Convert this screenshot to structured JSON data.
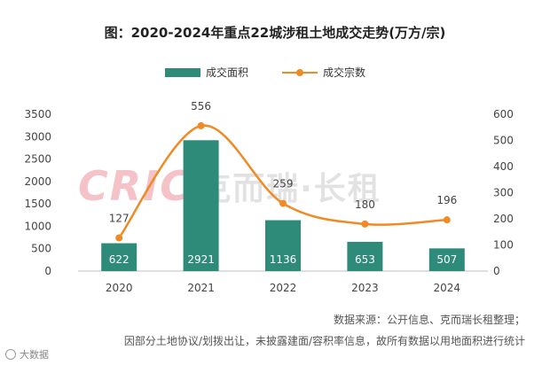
{
  "chart_data": {
    "type": "bar+line",
    "title": "图：2020-2024年重点22城涉租土地成交走势(万方/宗)",
    "categories": [
      "2020",
      "2021",
      "2022",
      "2023",
      "2024"
    ],
    "series": [
      {
        "name": "成交面积",
        "type": "bar",
        "axis": "left",
        "values": [
          622,
          2921,
          1136,
          653,
          507
        ]
      },
      {
        "name": "成交宗数",
        "type": "line",
        "axis": "right",
        "values": [
          127,
          556,
          259,
          180,
          196
        ]
      }
    ],
    "left_axis": {
      "min": 0,
      "max": 3500,
      "ticks": [
        0,
        500,
        1000,
        1500,
        2000,
        2500,
        3000,
        3500
      ]
    },
    "right_axis": {
      "min": 0,
      "max": 600,
      "ticks": [
        0,
        100,
        200,
        300,
        400,
        500,
        600
      ]
    },
    "legend_position": "top-center",
    "grid": false
  },
  "colors": {
    "bar": "#2e8b7a",
    "line": "#f08a24"
  },
  "watermark": {
    "logo": "CRIC",
    "text": "克而瑞·长租"
  },
  "footer": {
    "source": "数据来源：公开信息、克而瑞长租整理；",
    "note": "因部分土地协议/划拨出让，未披露建面/容积率信息，故所有数据以用地面积进行统计"
  },
  "corner_tag": "大数据"
}
